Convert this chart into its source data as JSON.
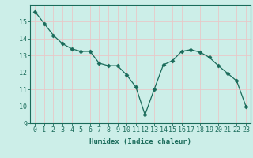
{
  "x": [
    0,
    1,
    2,
    3,
    4,
    5,
    6,
    7,
    8,
    9,
    10,
    11,
    12,
    13,
    14,
    15,
    16,
    17,
    18,
    19,
    20,
    21,
    22,
    23
  ],
  "y": [
    15.6,
    14.9,
    14.2,
    13.7,
    13.4,
    13.25,
    13.25,
    12.55,
    12.4,
    12.4,
    11.85,
    11.15,
    9.5,
    11.0,
    12.45,
    12.7,
    13.25,
    13.35,
    13.2,
    12.9,
    12.4,
    11.95,
    11.5,
    10.0
  ],
  "line_color": "#1a6b5a",
  "marker": "D",
  "marker_size": 2.5,
  "bg_color": "#cceee8",
  "grid_color_major": "#e8c8c8",
  "grid_color_minor": "#e8c8c8",
  "xlabel": "Humidex (Indice chaleur)",
  "ylim": [
    9,
    16
  ],
  "xlim": [
    -0.5,
    23.5
  ],
  "yticks": [
    9,
    10,
    11,
    12,
    13,
    14,
    15
  ],
  "xticks": [
    0,
    1,
    2,
    3,
    4,
    5,
    6,
    7,
    8,
    9,
    10,
    11,
    12,
    13,
    14,
    15,
    16,
    17,
    18,
    19,
    20,
    21,
    22,
    23
  ],
  "label_fontsize": 6.5,
  "tick_fontsize": 6.0
}
